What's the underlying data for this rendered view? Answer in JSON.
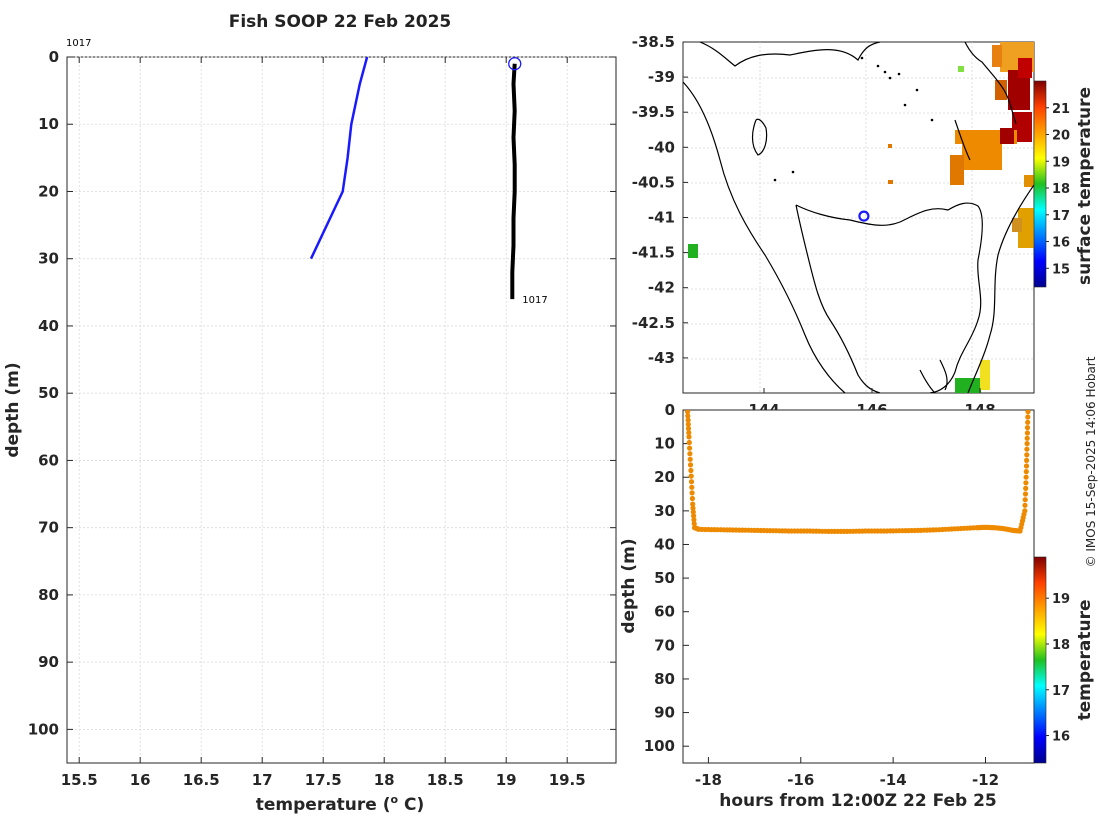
{
  "title": "Fish SOOP 22 Feb 2025",
  "credit": "© IMOS 15-Sep-2025 14:06 Hobart",
  "chart_data": [
    {
      "type": "line",
      "title": "Fish SOOP 22 Feb 2025",
      "xlabel": "temperature (",
      "xlabel_sup": "o",
      "xlabel_end": " C)",
      "ylabel": "depth (m)",
      "xlim": [
        15.4,
        19.9
      ],
      "ylim": [
        0,
        105
      ],
      "y_reversed": true,
      "grid": true,
      "xticks": [
        "15.5",
        "16",
        "16.5",
        "17",
        "17.5",
        "18",
        "18.5",
        "19",
        "19.5"
      ],
      "yticks": [
        "0",
        "10",
        "20",
        "30",
        "40",
        "50",
        "60",
        "70",
        "80",
        "90",
        "100"
      ],
      "annotations": [
        "1017",
        "1017"
      ],
      "series": [
        {
          "color": "#1a1aff",
          "x": [
            17.86,
            17.8,
            17.73,
            17.7,
            17.66,
            17.4
          ],
          "y": [
            0,
            4,
            10,
            15,
            20,
            30
          ]
        },
        {
          "color": "#000000",
          "x": [
            19.07,
            19.06,
            19.07,
            19.06,
            19.07,
            19.07,
            19.06,
            19.06,
            19.05,
            19.05
          ],
          "y": [
            1,
            4,
            8,
            12,
            16,
            20,
            24,
            28,
            32,
            36
          ]
        }
      ],
      "surface_marker_color": "#1a1aff"
    },
    {
      "type": "heatmap",
      "ylim": [
        -43.5,
        -38.5
      ],
      "xlim": [
        142.5,
        149
      ],
      "xticks": [
        "144",
        "146",
        "148"
      ],
      "yticks": [
        "-38.5",
        "-39",
        "-39.5",
        "-40",
        "-40.5",
        "-41",
        "-41.5",
        "-42",
        "-42.5",
        "-43"
      ],
      "marker": {
        "lon": 145.85,
        "lat": -40.98,
        "color": "#1a1aff"
      },
      "colorbar": {
        "label": "surface temperature",
        "ticks": [
          "21",
          "20",
          "19",
          "18",
          "17",
          "16",
          "15"
        ],
        "range": [
          14.3,
          22.0
        ]
      }
    },
    {
      "type": "scatter",
      "xlabel": "hours from 12:00Z 22 Feb 25",
      "ylabel": "depth (m)",
      "xlim": [
        -18.55,
        -10.95
      ],
      "ylim": [
        0,
        105
      ],
      "y_reversed": true,
      "xticks": [
        "-18",
        "-16",
        "-14",
        "-12"
      ],
      "yticks": [
        "0",
        "10",
        "20",
        "30",
        "40",
        "50",
        "60",
        "70",
        "80",
        "90",
        "100"
      ],
      "marker_color": "#ee8a00",
      "x": [
        -18.45,
        -18.42,
        -18.38,
        -18.34,
        -18.3,
        -18.2,
        -17.8,
        -17.4,
        -17.0,
        -16.6,
        -16.2,
        -15.8,
        -15.4,
        -15.0,
        -14.6,
        -14.2,
        -13.8,
        -13.4,
        -13.0,
        -12.6,
        -12.2,
        -12.0,
        -11.8,
        -11.6,
        -11.4,
        -11.25,
        -11.15,
        -11.12,
        -11.1,
        -11.08
      ],
      "y": [
        0.5,
        8,
        18,
        28,
        35,
        35.5,
        35.6,
        35.7,
        35.8,
        35.9,
        36.0,
        36.0,
        36.1,
        36.1,
        36.0,
        36.0,
        35.9,
        35.8,
        35.6,
        35.3,
        35.0,
        34.9,
        35.0,
        35.3,
        35.8,
        36.0,
        30,
        20,
        10,
        0.5
      ],
      "colorbar": {
        "label": "temperature",
        "ticks": [
          "19",
          "18",
          "17",
          "16"
        ],
        "range": [
          15.4,
          19.9
        ]
      }
    }
  ]
}
